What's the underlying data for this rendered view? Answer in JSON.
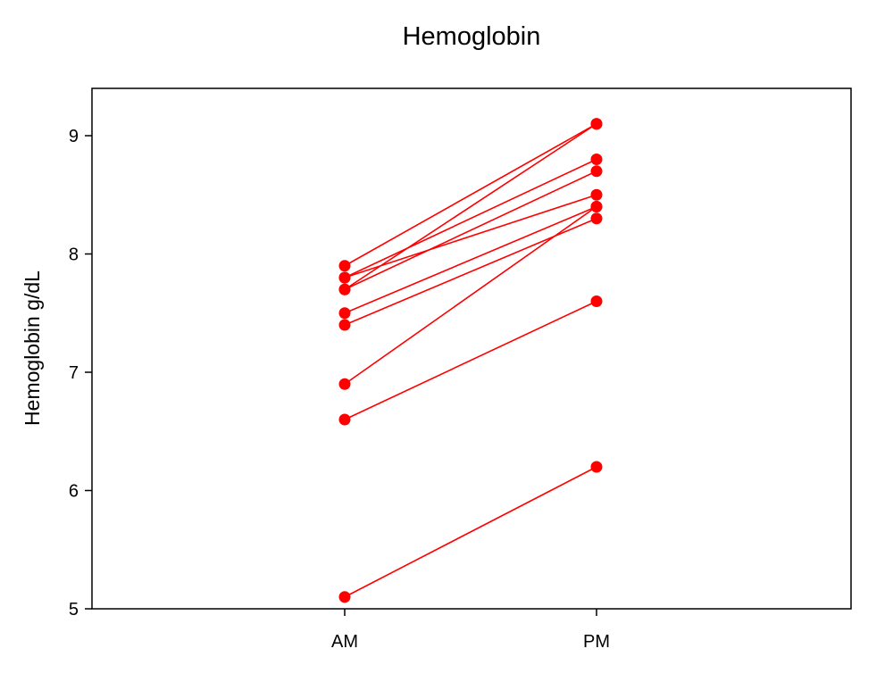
{
  "chart_data": {
    "type": "line",
    "title": "Hemoglobin",
    "xlabel": "",
    "ylabel": "Hemoglobin g/dL",
    "categories": [
      "AM",
      "PM"
    ],
    "ylim": [
      5,
      9.4
    ],
    "yticks": [
      5,
      6,
      7,
      8,
      9
    ],
    "grid": false,
    "legend": "none",
    "color": "#ff0000",
    "series": [
      {
        "values": [
          7.9,
          9.1
        ]
      },
      {
        "values": [
          7.8,
          8.8
        ]
      },
      {
        "values": [
          7.8,
          8.5
        ]
      },
      {
        "values": [
          7.7,
          9.1
        ]
      },
      {
        "values": [
          7.7,
          8.7
        ]
      },
      {
        "values": [
          7.5,
          8.4
        ]
      },
      {
        "values": [
          7.4,
          8.3
        ]
      },
      {
        "values": [
          6.9,
          8.4
        ]
      },
      {
        "values": [
          6.6,
          7.6
        ]
      },
      {
        "values": [
          5.1,
          6.2
        ]
      }
    ]
  }
}
